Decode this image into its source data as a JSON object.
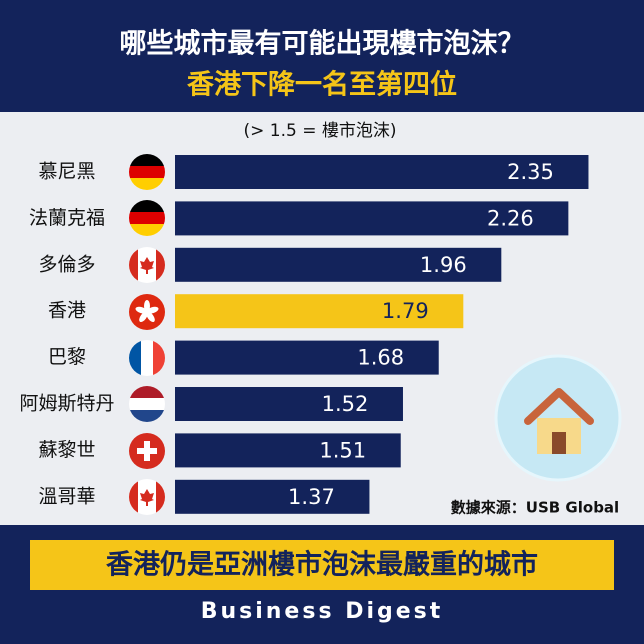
{
  "chart_data": {
    "type": "bar",
    "orientation": "horizontal",
    "title": "哪些城市最有可能出現樓市泡沫？",
    "subtitle": "香港下降一名至第四位",
    "annotation": "(> 1.5 = 樓市泡沫)",
    "source": "數據來源：USB Global",
    "banner": "香港仍是亞洲樓市泡沫最嚴重的城市",
    "brand": "Business Digest",
    "categories": [
      "慕尼黑",
      "法蘭克福",
      "多倫多",
      "香港",
      "巴黎",
      "阿姆斯特丹",
      "蘇黎世",
      "溫哥華"
    ],
    "values": [
      2.35,
      2.26,
      1.96,
      1.79,
      1.68,
      1.52,
      1.51,
      1.37
    ],
    "colors": [
      "#13235b",
      "#13235b",
      "#13235b",
      "#f5c518",
      "#13235b",
      "#13235b",
      "#13235b",
      "#13235b"
    ],
    "xlim": [
      0.5,
      2.5
    ]
  }
}
